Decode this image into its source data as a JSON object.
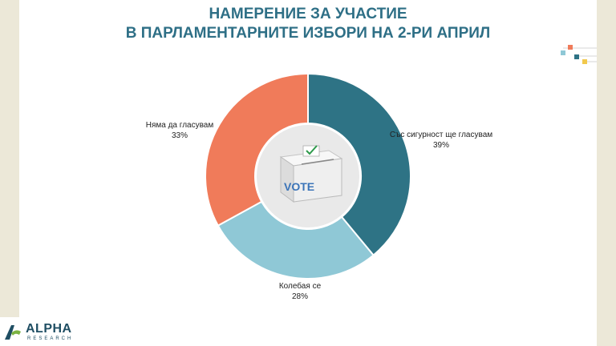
{
  "title": {
    "line1": "НАМЕРЕНИЕ ЗА УЧАСТИЕ",
    "line2": "В ПАРЛАМЕНТАРНИТЕ ИЗБОРИ НА 2-РИ АПРИЛ"
  },
  "chart_data": {
    "type": "pie",
    "donut": true,
    "categories": [
      "Със сигурност ще гласувам",
      "Колебая се",
      "Няма да гласувам"
    ],
    "values": [
      39,
      28,
      33
    ],
    "value_labels": [
      "39%",
      "28%",
      "33%"
    ],
    "colors": [
      "#2e7385",
      "#8fc8d6",
      "#f07b5a"
    ],
    "center_image": "ballot-box",
    "center_text": "VOTE"
  },
  "logo": {
    "name": "ALPHA",
    "sub": "RESEARCH"
  },
  "colors": {
    "title": "#2e6f86",
    "slide_border": "#ece8d8"
  }
}
